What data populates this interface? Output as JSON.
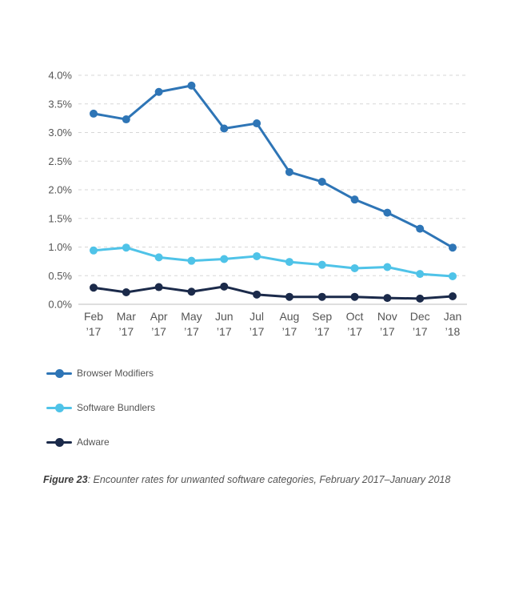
{
  "chart_data": {
    "type": "line",
    "categories": [
      [
        "Feb",
        "’17"
      ],
      [
        "Mar",
        "’17"
      ],
      [
        "Apr",
        "’17"
      ],
      [
        "May",
        "’17"
      ],
      [
        "Jun",
        "’17"
      ],
      [
        "Jul",
        "’17"
      ],
      [
        "Aug",
        "’17"
      ],
      [
        "Sep",
        "’17"
      ],
      [
        "Oct",
        "’17"
      ],
      [
        "Nov",
        "’17"
      ],
      [
        "Dec",
        "’17"
      ],
      [
        "Jan",
        "’18"
      ]
    ],
    "y_ticks": [
      "0.0%",
      "0.5%",
      "1.0%",
      "1.5%",
      "2.0%",
      "2.5%",
      "3.0%",
      "3.5%",
      "4.0%"
    ],
    "ylim": [
      0,
      4.0
    ],
    "grid": true,
    "legend_position": "bottom-left",
    "series": [
      {
        "name": "Browser Modifiers",
        "color": "#2e75b6",
        "values": [
          3.33,
          3.23,
          3.71,
          3.82,
          3.07,
          3.16,
          2.31,
          2.14,
          1.83,
          1.6,
          1.32,
          0.99
        ]
      },
      {
        "name": "Software Bundlers",
        "color": "#4fc3e8",
        "values": [
          0.94,
          0.99,
          0.82,
          0.76,
          0.79,
          0.84,
          0.74,
          0.69,
          0.63,
          0.65,
          0.53,
          0.49
        ]
      },
      {
        "name": "Adware",
        "color": "#1b2a4a",
        "values": [
          0.29,
          0.21,
          0.3,
          0.22,
          0.31,
          0.17,
          0.13,
          0.13,
          0.13,
          0.11,
          0.1,
          0.14
        ]
      }
    ]
  },
  "caption": {
    "label": "Figure 23",
    "text": ": Encounter rates for unwanted software categories, February 2017–January 2018"
  }
}
